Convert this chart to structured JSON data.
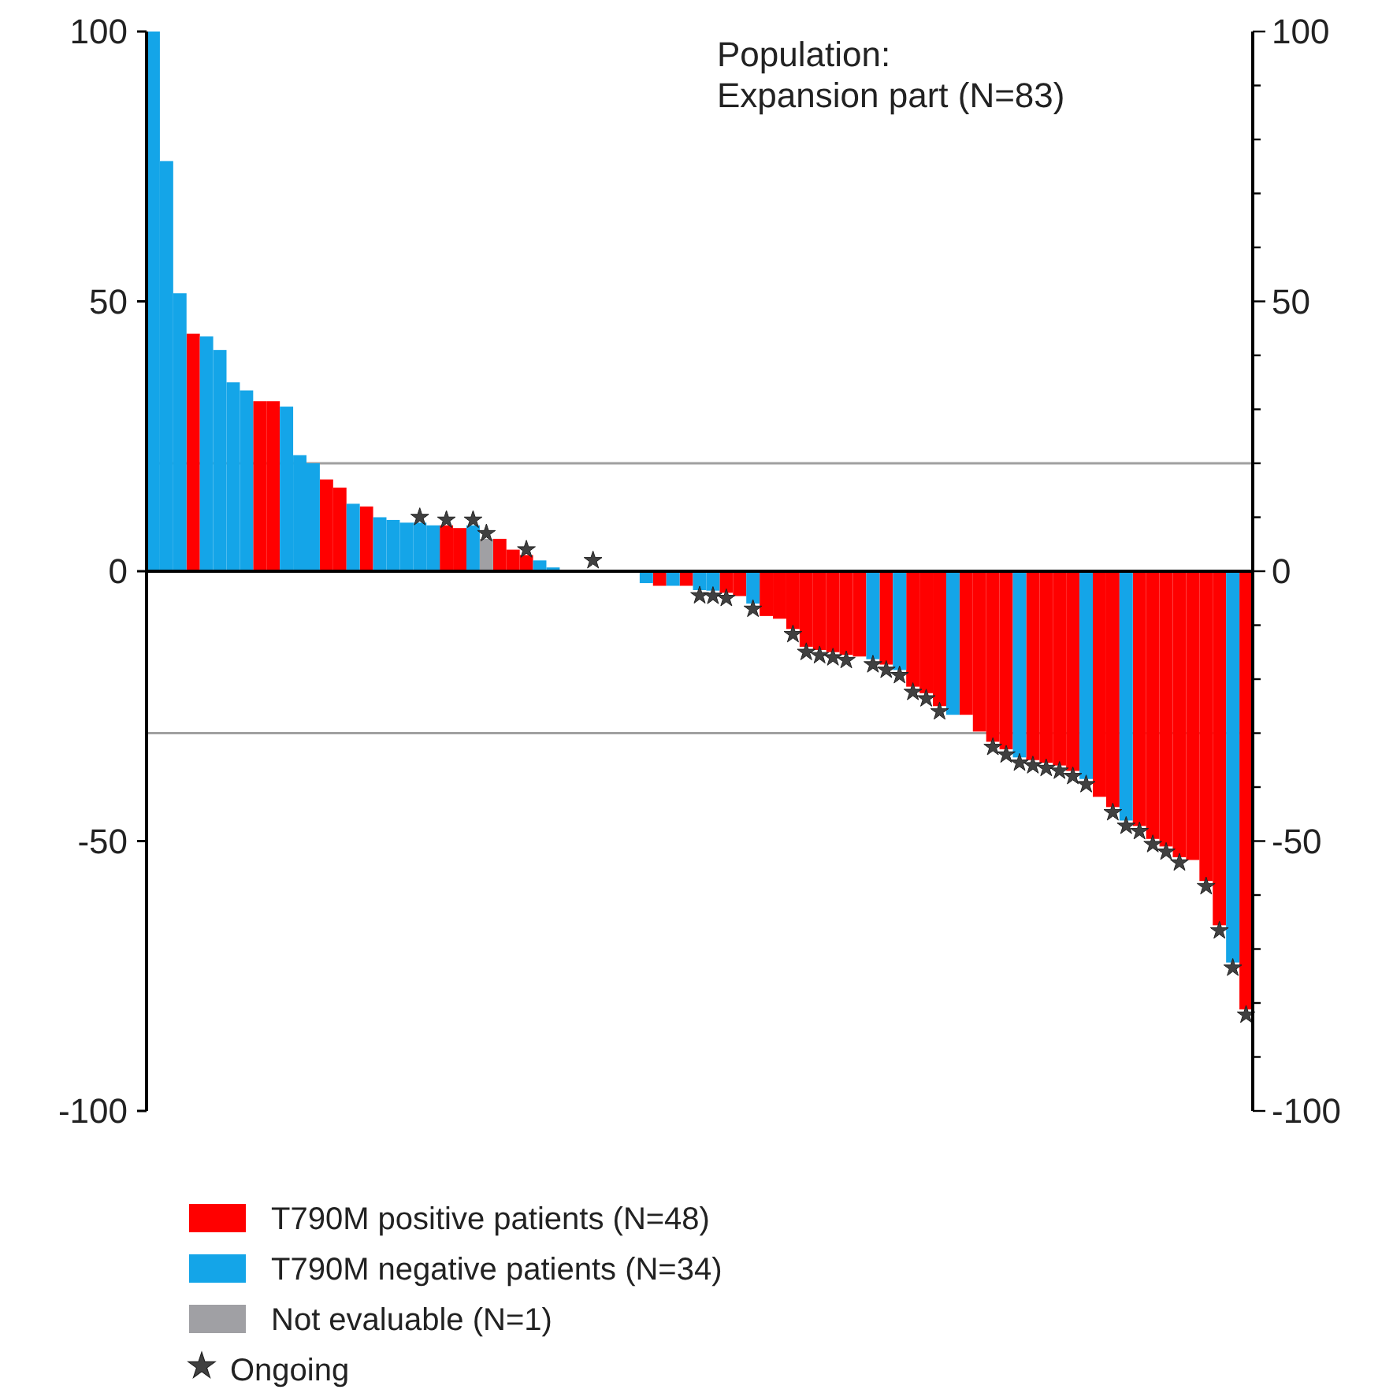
{
  "chart_data": {
    "type": "bar",
    "title": "Population:",
    "subtitle": "Expansion part (N=83)",
    "legend": "bottom left",
    "categories": [
      null,
      null,
      null,
      null,
      null,
      null,
      null,
      null,
      null,
      null,
      null,
      null,
      null,
      null,
      null,
      null,
      null,
      null,
      null,
      null,
      null,
      null,
      null,
      null,
      null,
      null,
      null,
      null,
      null,
      null,
      null,
      null,
      null,
      null,
      null,
      null,
      null,
      null,
      null,
      null,
      null,
      null,
      null,
      null,
      null,
      null,
      null,
      null,
      null,
      null,
      null,
      null,
      null,
      null,
      null,
      null,
      null,
      null,
      null,
      null,
      null,
      null,
      null,
      null,
      null,
      null,
      null,
      null,
      null,
      null,
      null,
      null,
      null,
      null,
      null,
      null,
      null,
      null,
      null,
      null,
      null,
      null,
      null
    ],
    "series": [
      {
        "name": "T790M positive patients (N=48)",
        "color": "#ff0000",
        "values": [
          null,
          null,
          null,
          44,
          null,
          null,
          null,
          null,
          31.5,
          31.5,
          null,
          null,
          null,
          17,
          15.5,
          null,
          12,
          null,
          null,
          null,
          null,
          null,
          8.5,
          8,
          null,
          null,
          6,
          4,
          3,
          null,
          null,
          0,
          null,
          0,
          null,
          0,
          null,
          null,
          -2.7,
          null,
          -2.7,
          null,
          null,
          -4,
          -4.6,
          null,
          -8.3,
          -8.8,
          -10.7,
          -14,
          -14.6,
          -15,
          -15.5,
          -15.8,
          null,
          -17.3,
          null,
          -21.4,
          -22.6,
          -25,
          null,
          -26.6,
          -29.7,
          -31.6,
          -33,
          null,
          -35,
          -35.5,
          -36,
          -37,
          null,
          -41.8,
          -43.7,
          null,
          -47.2,
          -49.6,
          -51,
          -53,
          -53.5,
          -57.4,
          -65.6,
          null,
          -81.2
        ]
      },
      {
        "name": "T790M negative patients (N=34)",
        "color": "#14a5e8",
        "values": [
          100,
          76,
          51.5,
          null,
          43.5,
          41,
          35,
          33.5,
          null,
          null,
          30.5,
          21.5,
          20,
          null,
          null,
          12.5,
          null,
          10,
          9.5,
          9,
          9,
          8.5,
          null,
          null,
          8.5,
          null,
          null,
          null,
          null,
          2,
          0.7,
          null,
          0,
          null,
          0,
          null,
          0,
          -2.2,
          null,
          -2.7,
          null,
          -3.5,
          -3.6,
          null,
          null,
          -6,
          null,
          null,
          null,
          null,
          null,
          null,
          null,
          null,
          -16.3,
          null,
          -18.3,
          null,
          null,
          null,
          -26.6,
          null,
          null,
          null,
          null,
          -34.5,
          null,
          null,
          null,
          null,
          -38.5,
          null,
          null,
          -46.2,
          null,
          null,
          null,
          null,
          null,
          null,
          null,
          -72.5,
          null
        ]
      },
      {
        "name": "Not evaluable (N=1)",
        "color": "#a0a0a4",
        "values": [
          null,
          null,
          null,
          null,
          null,
          null,
          null,
          null,
          null,
          null,
          null,
          null,
          null,
          null,
          null,
          null,
          null,
          null,
          null,
          null,
          null,
          null,
          null,
          null,
          null,
          6,
          null,
          null,
          null,
          null,
          null,
          null,
          null,
          null,
          null,
          null,
          null,
          null,
          null,
          null,
          null,
          null,
          null,
          null,
          null,
          null,
          null,
          null,
          null,
          null,
          null,
          null,
          null,
          null,
          null,
          null,
          null,
          null,
          null,
          null,
          null,
          null,
          null,
          null,
          null,
          null,
          null,
          null,
          null,
          null,
          null,
          null,
          null,
          null,
          null,
          null,
          null,
          null,
          null,
          null,
          null,
          null,
          null
        ]
      },
      {
        "name": "Ongoing",
        "type": "scatter",
        "marker": "star",
        "color": "#404040",
        "values": [
          null,
          null,
          null,
          null,
          null,
          null,
          null,
          null,
          null,
          null,
          null,
          null,
          null,
          null,
          null,
          null,
          null,
          null,
          null,
          null,
          10,
          null,
          9.5,
          null,
          9.5,
          7,
          null,
          null,
          4,
          null,
          null,
          null,
          null,
          2,
          null,
          null,
          null,
          null,
          null,
          null,
          null,
          -4.5,
          -4.6,
          -5,
          null,
          -7,
          null,
          null,
          -11.7,
          -15,
          -15.6,
          -16,
          -16.5,
          null,
          -17.3,
          -18.3,
          -19.3,
          -22.4,
          -23.6,
          -26,
          null,
          null,
          null,
          -32.6,
          -34,
          -35.5,
          -36,
          -36.5,
          -37,
          -38,
          -39.5,
          null,
          -44.7,
          -47.2,
          -48.2,
          -50.6,
          -52,
          -54,
          null,
          -58.4,
          -66.6,
          -73.5,
          -82.2
        ]
      }
    ],
    "ylim": [
      -100,
      100
    ],
    "yticks": [
      -100,
      -50,
      0,
      50,
      100
    ],
    "y2lim": [
      -100,
      100
    ],
    "y2ticks": [
      -100,
      {
        "value": -90,
        "label": null
      },
      {
        "value": -80,
        "label": null
      },
      {
        "value": -70,
        "label": null
      },
      {
        "value": -60,
        "label": null
      },
      -50,
      {
        "value": -40,
        "label": null
      },
      {
        "value": -30,
        "label": null
      },
      {
        "value": -20,
        "label": null
      },
      {
        "value": -10,
        "label": null
      },
      0,
      {
        "value": 10,
        "label": null
      },
      {
        "value": 20,
        "label": null
      },
      {
        "value": 30,
        "label": null
      },
      {
        "value": 40,
        "label": null
      },
      50,
      {
        "value": 60,
        "label": null
      },
      {
        "value": 70,
        "label": null
      },
      {
        "value": 80,
        "label": null
      },
      {
        "value": 90,
        "label": null
      },
      100
    ],
    "ref_lines": [
      {
        "axis": "y",
        "value": 20,
        "color": "#a0a0a0"
      },
      {
        "axis": "y",
        "value": -30,
        "color": "#a0a0a0"
      }
    ]
  }
}
